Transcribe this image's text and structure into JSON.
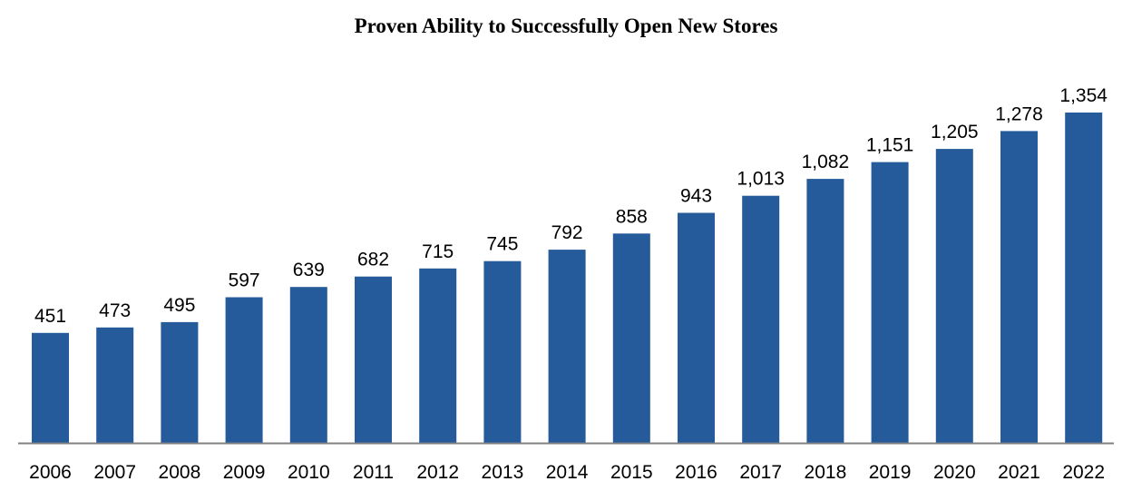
{
  "chart_data": {
    "type": "bar",
    "title": "Proven Ability to Successfully Open New Stores",
    "xlabel": "",
    "ylabel": "",
    "categories": [
      "2006",
      "2007",
      "2008",
      "2009",
      "2010",
      "2011",
      "2012",
      "2013",
      "2014",
      "2015",
      "2016",
      "2017",
      "2018",
      "2019",
      "2020",
      "2021",
      "2022"
    ],
    "values": [
      451,
      473,
      495,
      597,
      639,
      682,
      715,
      745,
      792,
      858,
      943,
      1013,
      1082,
      1151,
      1205,
      1278,
      1354
    ],
    "data_labels": [
      "451",
      "473",
      "495",
      "597",
      "639",
      "682",
      "715",
      "745",
      "792",
      "858",
      "943",
      "1,013",
      "1,082",
      "1,151",
      "1,205",
      "1,278",
      "1,354"
    ],
    "ylim": [
      0,
      1354
    ],
    "grid": false,
    "legend": "none",
    "colors": {
      "bar": "#255A9B",
      "axis": "#808080"
    }
  }
}
